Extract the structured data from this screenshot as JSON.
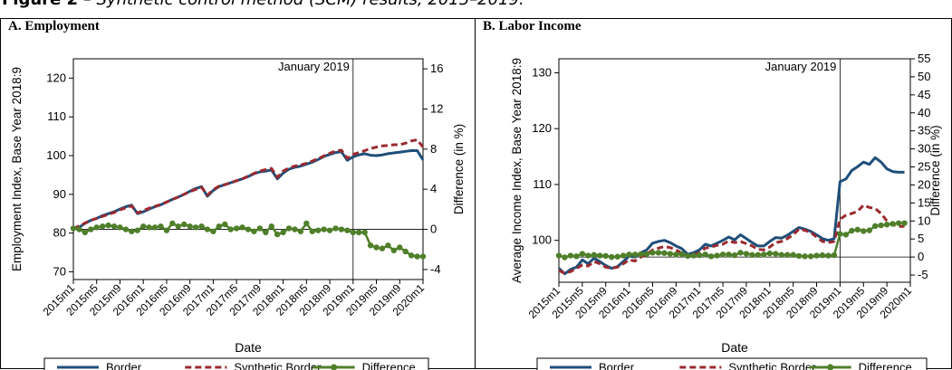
{
  "figure": {
    "title_prefix": "Figure 2",
    "title_text": " – Synthetic control method (SCM) results, 2015–2019."
  },
  "colors": {
    "border": "#1f4e79",
    "synthetic": "#9b2a2f",
    "difference": "#4f7f2a"
  },
  "legend": {
    "placement": "bottom",
    "items": [
      "Border",
      "Synthetic Border",
      "Difference"
    ]
  },
  "chart_data": [
    {
      "type": "line",
      "panel_title": "A. Employment",
      "xlabel": "Date",
      "ylabel": "Employment Index, Base Year 2018:9",
      "y2label": "Difference (in %)",
      "annotation": "January 2019",
      "treatment_period": "2019m1",
      "x_start": "2015m1",
      "x_ticks": [
        "2015m1",
        "2015m5",
        "2015m9",
        "2016m1",
        "2016m5",
        "2016m9",
        "2017m1",
        "2017m5",
        "2017m9",
        "2018m1",
        "2018m5",
        "2018m9",
        "2019m1",
        "2019m5",
        "2019m9",
        "2020m1"
      ],
      "ylim": [
        68,
        125
      ],
      "yticks": [
        70,
        80,
        90,
        100,
        110,
        120
      ],
      "y2lim": [
        -5,
        17
      ],
      "y2ticks": [
        -4,
        0,
        4,
        8,
        12,
        16
      ],
      "grid": false,
      "series": [
        {
          "name": "Border",
          "axis": "left",
          "values": [
            81.0,
            81.5,
            82.5,
            83.3,
            83.8,
            84.5,
            85.0,
            85.5,
            86.2,
            86.8,
            87.2,
            85.0,
            85.5,
            86.2,
            86.8,
            87.3,
            88.0,
            88.7,
            89.3,
            90.0,
            90.8,
            91.5,
            92.0,
            89.5,
            91.0,
            92.0,
            92.5,
            93.0,
            93.5,
            94.0,
            94.6,
            95.3,
            95.8,
            96.0,
            96.3,
            94.0,
            95.5,
            96.5,
            97.0,
            97.3,
            97.8,
            98.3,
            99.0,
            99.8,
            100.3,
            100.8,
            101.0,
            98.8,
            99.7,
            100.2,
            100.5,
            100.1,
            100.0,
            100.2,
            100.5,
            100.7,
            100.9,
            101.1,
            101.3,
            101.3,
            98.9
          ]
        },
        {
          "name": "Synthetic Border",
          "axis": "left",
          "values": [
            81.2,
            81.8,
            82.6,
            83.3,
            83.8,
            84.3,
            84.8,
            85.3,
            86.0,
            86.5,
            87.0,
            85.2,
            85.8,
            86.4,
            86.9,
            87.4,
            88.0,
            88.7,
            89.3,
            90.0,
            90.7,
            91.3,
            91.8,
            89.8,
            91.2,
            92.1,
            92.5,
            93.0,
            93.5,
            94.0,
            94.7,
            95.4,
            96.0,
            96.4,
            96.7,
            94.4,
            96.0,
            96.8,
            97.3,
            97.6,
            98.0,
            98.6,
            99.2,
            99.9,
            100.6,
            101.2,
            101.4,
            99.3,
            100.3,
            100.8,
            101.3,
            101.8,
            102.2,
            102.5,
            102.6,
            102.8,
            102.8,
            103.2,
            103.8,
            104.1,
            102.2
          ]
        },
        {
          "name": "Difference",
          "axis": "right",
          "values": [
            0.1,
            0.0,
            -0.3,
            0.0,
            0.2,
            0.3,
            0.4,
            0.3,
            0.2,
            0.0,
            -0.2,
            -0.1,
            0.3,
            0.2,
            0.2,
            0.3,
            -0.1,
            0.6,
            0.3,
            0.5,
            0.3,
            0.2,
            0.3,
            0.0,
            -0.2,
            0.3,
            0.5,
            0.0,
            0.1,
            0.2,
            0.0,
            -0.2,
            0.1,
            -0.3,
            0.3,
            -0.5,
            -0.3,
            0.1,
            0.0,
            -0.2,
            0.6,
            -0.2,
            -0.1,
            0.0,
            -0.1,
            0.1,
            0.0,
            -0.1,
            -0.3,
            -0.3,
            -0.3,
            -1.6,
            -1.8,
            -1.9,
            -1.6,
            -2.1,
            -1.8,
            -2.2,
            -2.6,
            -2.7,
            -2.7
          ]
        }
      ]
    },
    {
      "type": "line",
      "panel_title": "B. Labor Income",
      "xlabel": "Date",
      "ylabel": "Average Income Index, Base Year 2018:9",
      "y2label": "Difference (in %)",
      "annotation": "January 2019",
      "treatment_period": "2019m1",
      "x_start": "2015m1",
      "x_ticks": [
        "2015m1",
        "2015m5",
        "2015m9",
        "2016m1",
        "2016m5",
        "2016m9",
        "2017m1",
        "2017m5",
        "2017m9",
        "2018m1",
        "2018m5",
        "2018m9",
        "2019m1",
        "2019m5",
        "2019m9",
        "2020m1"
      ],
      "ylim": [
        92.5,
        132.5
      ],
      "yticks": [
        100,
        110,
        120,
        130
      ],
      "y2lim": [
        -7,
        55
      ],
      "y2ticks": [
        -5,
        0,
        5,
        10,
        15,
        20,
        25,
        30,
        35,
        40,
        45,
        50,
        55
      ],
      "grid": false,
      "series": [
        {
          "name": "Border",
          "axis": "left",
          "values": [
            95.0,
            94.0,
            94.8,
            95.2,
            96.5,
            95.8,
            96.8,
            96.2,
            95.5,
            95.0,
            95.3,
            96.2,
            97.2,
            97.0,
            97.8,
            98.3,
            99.5,
            99.8,
            100.0,
            99.6,
            99.0,
            98.5,
            97.5,
            97.8,
            98.3,
            99.3,
            99.0,
            99.5,
            100.0,
            100.6,
            100.1,
            101.0,
            100.3,
            99.6,
            99.0,
            99.0,
            99.8,
            100.5,
            100.4,
            100.9,
            101.6,
            102.3,
            102.0,
            101.6,
            101.0,
            100.3,
            100.0,
            100.3,
            110.5,
            111.0,
            112.5,
            113.2,
            114.0,
            113.6,
            114.8,
            114.0,
            112.8,
            112.3,
            112.2,
            112.2
          ]
        },
        {
          "name": "Synthetic Border",
          "axis": "left",
          "values": [
            94.6,
            94.1,
            94.4,
            95.0,
            95.6,
            95.4,
            96.2,
            95.8,
            95.2,
            95.0,
            95.2,
            95.8,
            96.5,
            96.3,
            97.0,
            97.5,
            98.3,
            98.6,
            98.9,
            98.7,
            98.3,
            97.7,
            97.2,
            97.4,
            97.8,
            98.6,
            98.8,
            99.1,
            99.3,
            99.9,
            99.6,
            99.8,
            99.4,
            99.0,
            98.4,
            98.3,
            98.8,
            99.6,
            99.8,
            100.3,
            101.0,
            102.0,
            101.8,
            101.4,
            100.6,
            99.8,
            99.6,
            99.8,
            103.8,
            104.5,
            104.8,
            105.2,
            106.3,
            105.9,
            105.7,
            104.8,
            103.5,
            102.8,
            102.5,
            102.5
          ]
        },
        {
          "name": "Difference",
          "axis": "right",
          "values": [
            0.4,
            -0.1,
            0.4,
            0.2,
            0.9,
            0.4,
            0.6,
            0.4,
            0.3,
            0.0,
            0.1,
            0.4,
            0.7,
            0.7,
            0.8,
            0.8,
            1.2,
            1.2,
            1.1,
            0.9,
            0.7,
            0.8,
            0.3,
            0.4,
            0.5,
            0.7,
            0.2,
            0.4,
            0.7,
            0.7,
            0.5,
            1.2,
            0.9,
            0.6,
            0.6,
            0.7,
            1.0,
            0.9,
            0.6,
            0.6,
            0.6,
            0.3,
            0.2,
            0.2,
            0.4,
            0.5,
            0.4,
            0.5,
            6.4,
            6.2,
            7.3,
            7.6,
            7.2,
            7.4,
            8.6,
            8.8,
            9.0,
            9.2,
            9.4,
            9.4
          ]
        }
      ]
    }
  ]
}
